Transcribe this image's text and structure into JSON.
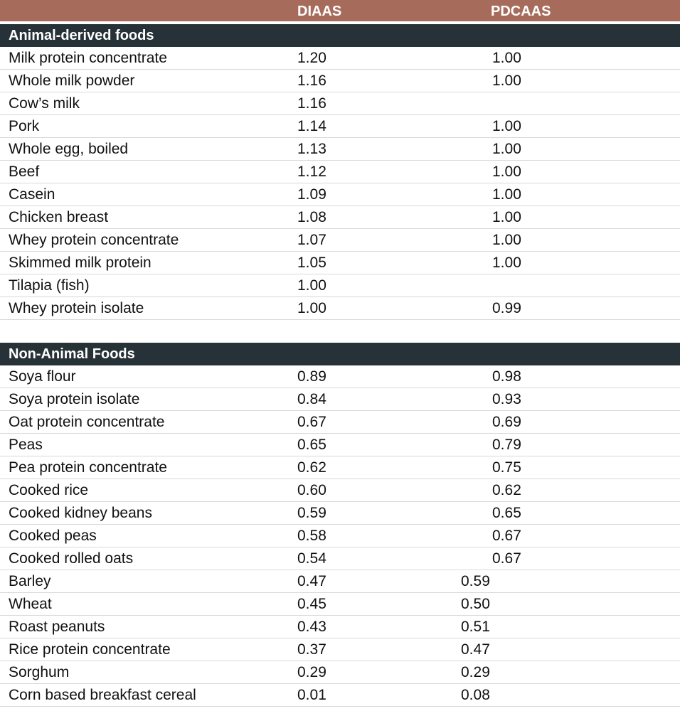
{
  "table": {
    "columns": [
      "DIAAS",
      "PDCAAS"
    ],
    "sections": [
      {
        "title": "Animal-derived foods",
        "rows": [
          [
            "Milk protein concentrate",
            "1.20",
            "1.00"
          ],
          [
            "Whole milk powder",
            "1.16",
            "1.00"
          ],
          [
            "Cow’s milk",
            "1.16",
            null
          ],
          [
            "Pork",
            "1.14",
            "1.00"
          ],
          [
            "Whole egg, boiled",
            "1.13",
            "1.00"
          ],
          [
            "Beef",
            "1.12",
            "1.00"
          ],
          [
            "Casein",
            "1.09",
            "1.00"
          ],
          [
            "Chicken breast",
            "1.08",
            "1.00"
          ],
          [
            "Whey protein concentrate",
            "1.07",
            "1.00"
          ],
          [
            "Skimmed milk protein",
            "1.05",
            "1.00"
          ],
          [
            "Tilapia (fish)",
            "1.00",
            null
          ],
          [
            "Whey protein isolate",
            "1.00",
            "0.99"
          ]
        ]
      },
      {
        "title": "Non-Animal Foods",
        "rows": [
          [
            "Soya flour",
            "0.89",
            "0.98"
          ],
          [
            "Soya protein isolate",
            "0.84",
            "0.93"
          ],
          [
            "Oat protein concentrate",
            "0.67",
            "0.69"
          ],
          [
            "Peas",
            "0.65",
            "0.79"
          ],
          [
            "Pea protein concentrate",
            "0.62",
            "0.75"
          ],
          [
            "Cooked rice",
            "0.60",
            "0.62"
          ],
          [
            "Cooked kidney beans",
            "0.59",
            "0.65"
          ],
          [
            "Cooked peas",
            "0.58",
            "0.67"
          ],
          [
            "Cooked rolled oats",
            "0.54",
            "0.67"
          ],
          [
            "Barley",
            "0.47",
            "0.59"
          ],
          [
            "Wheat",
            "0.45",
            "0.50"
          ],
          [
            "Roast peanuts",
            "0.43",
            "0.51"
          ],
          [
            "Rice protein concentrate",
            "0.37",
            "0.47"
          ],
          [
            "Sorghum",
            "0.29",
            "0.29"
          ],
          [
            "Corn based breakfast cereal",
            "0.01",
            "0.08"
          ]
        ]
      }
    ]
  }
}
